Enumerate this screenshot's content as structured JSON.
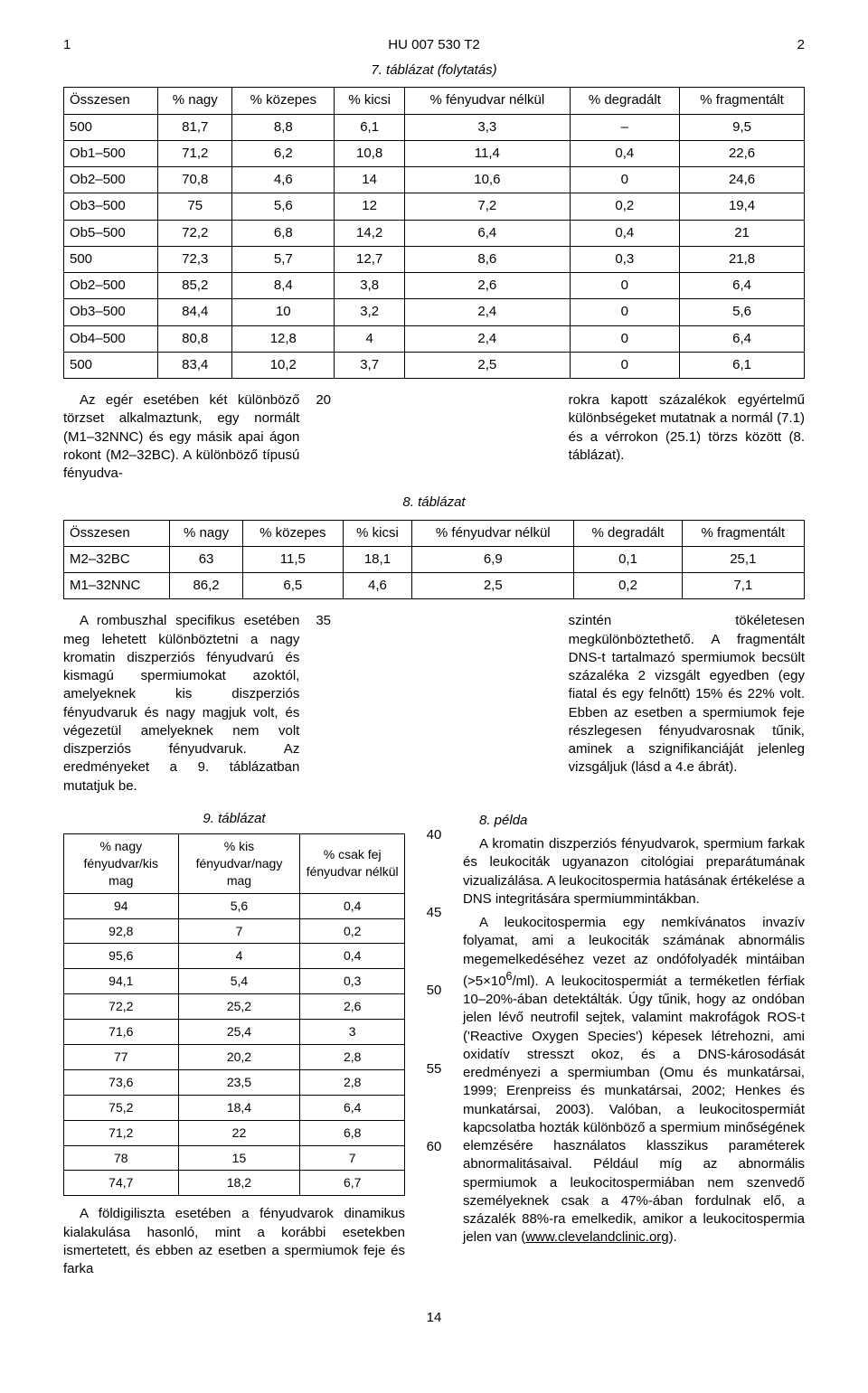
{
  "header": {
    "left_num": "1",
    "doc_code": "HU 007 530 T2",
    "right_num": "2"
  },
  "t7": {
    "caption": "7. táblázat (folytatás)",
    "columns": [
      "Összesen",
      "% nagy",
      "% közepes",
      "% kicsi",
      "% fényudvar nélkül",
      "% degradált",
      "% fragmentált"
    ],
    "rows": [
      [
        "500",
        "81,7",
        "8,8",
        "6,1",
        "3,3",
        "–",
        "9,5"
      ],
      [
        "Ob1–500",
        "71,2",
        "6,2",
        "10,8",
        "11,4",
        "0,4",
        "22,6"
      ],
      [
        "Ob2–500",
        "70,8",
        "4,6",
        "14",
        "10,6",
        "0",
        "24,6"
      ],
      [
        "Ob3–500",
        "75",
        "5,6",
        "12",
        "7,2",
        "0,2",
        "19,4"
      ],
      [
        "Ob5–500",
        "72,2",
        "6,8",
        "14,2",
        "6,4",
        "0,4",
        "21"
      ],
      [
        "500",
        "72,3",
        "5,7",
        "12,7",
        "8,6",
        "0,3",
        "21,8"
      ],
      [
        "Ob2–500",
        "85,2",
        "8,4",
        "3,8",
        "2,6",
        "0",
        "6,4"
      ],
      [
        "Ob3–500",
        "84,4",
        "10",
        "3,2",
        "2,4",
        "0",
        "5,6"
      ],
      [
        "Ob4–500",
        "80,8",
        "12,8",
        "4",
        "2,4",
        "0",
        "6,4"
      ],
      [
        "500",
        "83,4",
        "10,2",
        "3,7",
        "2,5",
        "0",
        "6,1"
      ]
    ]
  },
  "mid": {
    "left": "Az egér esetében két különböző törzset alkalmaztunk, egy normált (M1–32NNC) és egy másik apai ágon rokont (M2–32BC). A különböző típusú fényudva-",
    "ln": "20",
    "right": "rokra kapott százalékok egyértelmű különbségeket mutatnak a normál (7.1) és a vérrokon (25.1) törzs között (8. táblázat)."
  },
  "t8": {
    "caption": "8. táblázat",
    "columns": [
      "Összesen",
      "% nagy",
      "% közepes",
      "% kicsi",
      "% fényudvar nélkül",
      "% degradált",
      "% fragmentált"
    ],
    "rows": [
      [
        "M2–32BC",
        "63",
        "11,5",
        "18,1",
        "6,9",
        "0,1",
        "25,1"
      ],
      [
        "M1–32NNC",
        "86,2",
        "6,5",
        "4,6",
        "2,5",
        "0,2",
        "7,1"
      ]
    ]
  },
  "mid2": {
    "left": "A rombuszhal specifikus esetében meg lehetett különböztetni a nagy kromatin diszperziós fényudvarú és kismagú spermiumokat azoktól, amelyeknek kis diszperziós fényudvaruk és nagy magjuk volt, és végezetül amelyeknek nem volt diszperziós fényudvaruk. Az eredményeket a 9. táblázatban mutatjuk be.",
    "ln": "35",
    "right": "szintén tökéletesen megkülönböztethető. A fragmentált DNS-t tartalmazó spermiumok becsült százaléka 2 vizsgált egyedben (egy fiatal és egy felnőtt) 15% és 22% volt. Ebben az esetben a spermiumok feje részlegesen fényudvarosnak tűnik, aminek a szignifikanciáját jelenleg vizsgáljuk (lásd a 4.e ábrát)."
  },
  "t9": {
    "caption": "9. táblázat",
    "columns": [
      "% nagy fényudvar/kis mag",
      "% kis fényudvar/nagy mag",
      "% csak fej fényudvar nélkül"
    ],
    "rows": [
      [
        "94",
        "5,6",
        "0,4"
      ],
      [
        "92,8",
        "7",
        "0,2"
      ],
      [
        "95,6",
        "4",
        "0,4"
      ],
      [
        "94,1",
        "5,4",
        "0,3"
      ],
      [
        "72,2",
        "25,2",
        "2,6"
      ],
      [
        "71,6",
        "25,4",
        "3"
      ],
      [
        "77",
        "20,2",
        "2,8"
      ],
      [
        "73,6",
        "23,5",
        "2,8"
      ],
      [
        "75,2",
        "18,4",
        "6,4"
      ],
      [
        "71,2",
        "22",
        "6,8"
      ],
      [
        "78",
        "15",
        "7"
      ],
      [
        "74,7",
        "18,2",
        "6,7"
      ]
    ]
  },
  "after_t9": "A földigiliszta esetében a fényudvarok dinamikus kialakulása hasonló, mint a korábbi esetekben ismertetett, és ebben az esetben a spermiumok feje és farka",
  "right_col": {
    "ex8_head": "8. példa",
    "p1": "A kromatin diszperziós fényudvarok, spermium farkak és leukociták ugyanazon citológiai preparátumának vizualizálása. A leukocitospermia hatásának értékelése a DNS integritására spermiummintákban.",
    "p2a": "A leukocitospermia egy nemkívánatos invazív folyamat, ami a leukociták számának abnormális megemelkedéséhez vezet az ondófolyadék mintáiban (>5×10",
    "p2sup": "6",
    "p2b": "/ml). A leukocitospermiát a terméketlen férfiak 10–20%-ában detektálták. Úgy tűnik, hogy az ondóban jelen lévő neutrofil sejtek, valamint makrofágok ROS-t ('Reactive Oxygen Species') képesek létrehozni, ami oxidatív stresszt okoz, és a DNS-károsodását eredményezi a spermiumban (Omu és munkatársai, 1999; Erenpreiss és munkatársai, 2002; Henkes és munkatársai, 2003). Valóban, a leukocitospermiát kapcsolatba hozták különböző a spermium minőségének elemzésére használatos klasszikus paraméterek abnormalitásaival. Például míg az abnormális spermiumok a leukocitospermiában nem szenvedő személyeknek csak a 47%-ában fordulnak elő, a százalék 88%-ra emelkedik, amikor a leukocitospermia jelen van (",
    "link_text": "www.clevelandclinic.org",
    "p2c": ")."
  },
  "linenums_lower": [
    "40",
    "45",
    "50",
    "55",
    "60"
  ],
  "page_number": "14"
}
